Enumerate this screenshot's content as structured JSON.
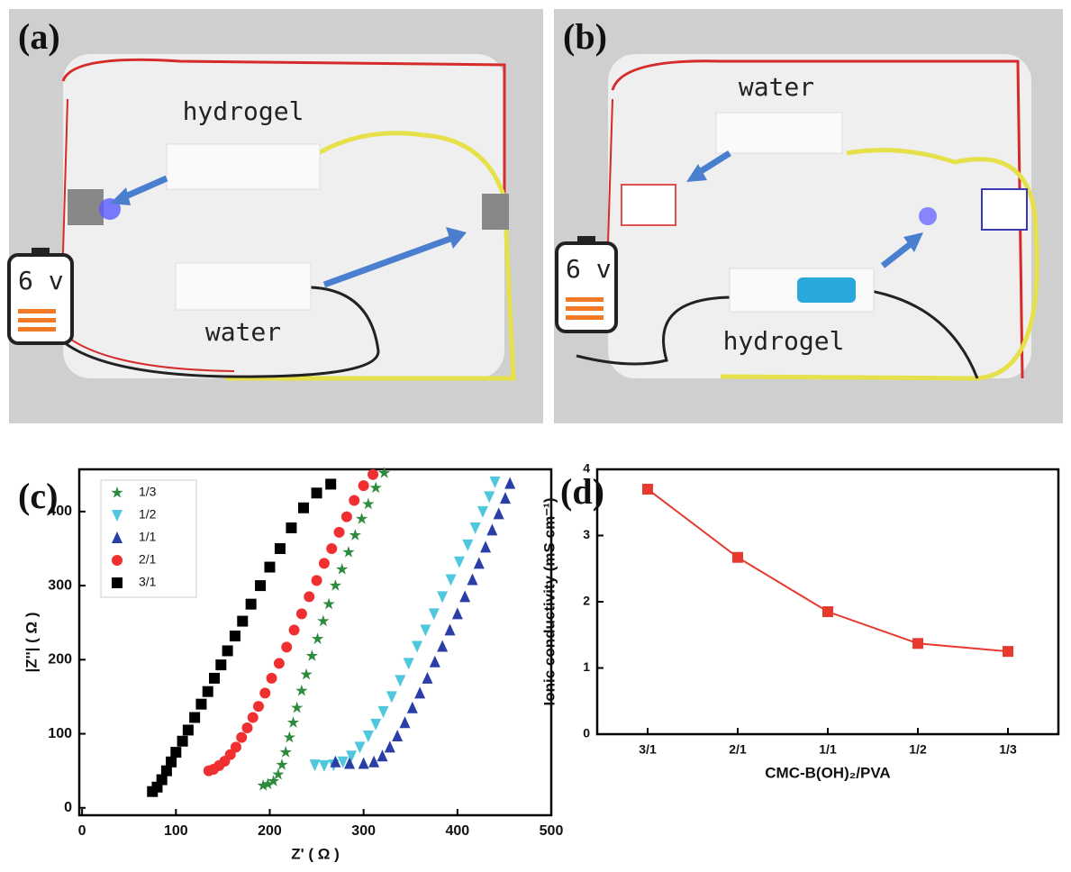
{
  "photos": [
    {
      "label": "(a)",
      "texts": [
        "hydrogel",
        "water",
        "6 v"
      ]
    },
    {
      "label": "(b)",
      "texts": [
        "water",
        "hydrogel",
        "6 v"
      ]
    }
  ],
  "chart_data": [
    {
      "type": "scatter",
      "panel_label": "(c)",
      "x_label": "Z' ( Ω )",
      "y_label": "|Z''| ( Ω )",
      "xlim": [
        -3,
        500
      ],
      "ylim": [
        -10,
        457
      ],
      "xticks": [
        0,
        100,
        200,
        300,
        400,
        500
      ],
      "yticks": [
        0,
        100,
        200,
        300,
        400
      ],
      "legend": "upper-left",
      "series": [
        {
          "name": "1/3",
          "color": "#2e8b3e",
          "marker": "star",
          "x": [
            193,
            198,
            204,
            209,
            213,
            217,
            221,
            225,
            229,
            234,
            239,
            245,
            251,
            257,
            263,
            270,
            277,
            284,
            291,
            298,
            305,
            313,
            322
          ],
          "values": [
            30,
            32,
            36,
            45,
            58,
            75,
            95,
            115,
            135,
            158,
            180,
            205,
            228,
            252,
            275,
            300,
            322,
            345,
            368,
            390,
            410,
            432,
            452
          ]
        },
        {
          "name": "1/2",
          "color": "#4fc8de",
          "marker": "triangle-down",
          "x": [
            248,
            258,
            268,
            278,
            287,
            296,
            305,
            313,
            321,
            330,
            339,
            348,
            357,
            366,
            375,
            384,
            393,
            402,
            411,
            419,
            427,
            434,
            440
          ],
          "values": [
            58,
            57,
            58,
            62,
            70,
            82,
            97,
            113,
            130,
            150,
            172,
            195,
            218,
            240,
            262,
            285,
            308,
            332,
            355,
            378,
            400,
            420,
            440
          ]
        },
        {
          "name": "1/1",
          "color": "#2a3ea8",
          "marker": "triangle-up",
          "x": [
            270,
            285,
            300,
            311,
            320,
            328,
            336,
            344,
            352,
            360,
            368,
            376,
            384,
            392,
            400,
            408,
            416,
            423,
            430,
            437,
            444,
            451,
            456
          ],
          "values": [
            62,
            60,
            60,
            62,
            70,
            82,
            97,
            115,
            135,
            155,
            175,
            197,
            218,
            240,
            262,
            285,
            308,
            330,
            352,
            375,
            397,
            418,
            438
          ]
        },
        {
          "name": "2/1",
          "color": "#f03030",
          "marker": "circle",
          "x": [
            135,
            140,
            146,
            152,
            158,
            164,
            170,
            176,
            182,
            188,
            195,
            202,
            210,
            218,
            226,
            234,
            242,
            250,
            258,
            266,
            274,
            282,
            290,
            300,
            310
          ],
          "values": [
            50,
            52,
            57,
            63,
            72,
            82,
            95,
            108,
            122,
            137,
            155,
            175,
            195,
            217,
            240,
            262,
            285,
            307,
            330,
            350,
            372,
            393,
            415,
            435,
            450
          ]
        },
        {
          "name": "3/1",
          "color": "#000000",
          "marker": "square",
          "x": [
            75,
            80,
            85,
            90,
            95,
            100,
            107,
            113,
            120,
            127,
            134,
            141,
            148,
            155,
            163,
            171,
            180,
            190,
            200,
            211,
            223,
            236,
            250,
            265
          ],
          "values": [
            22,
            28,
            38,
            50,
            62,
            75,
            90,
            105,
            122,
            140,
            157,
            175,
            193,
            212,
            232,
            252,
            275,
            300,
            325,
            350,
            378,
            405,
            425,
            437
          ]
        }
      ]
    },
    {
      "type": "line",
      "panel_label": "(d)",
      "x_label": "CMC-B(OH)₂/PVA",
      "y_label": "Ionic conductivity (mS cm⁻¹)",
      "categories": [
        "3/1",
        "2/1",
        "1/1",
        "1/2",
        "1/3"
      ],
      "values": [
        3.7,
        2.67,
        1.85,
        1.37,
        1.25
      ],
      "color": "#e8392f",
      "ylim": [
        0,
        4
      ],
      "yticks": [
        0,
        1,
        2,
        3,
        4
      ]
    }
  ]
}
